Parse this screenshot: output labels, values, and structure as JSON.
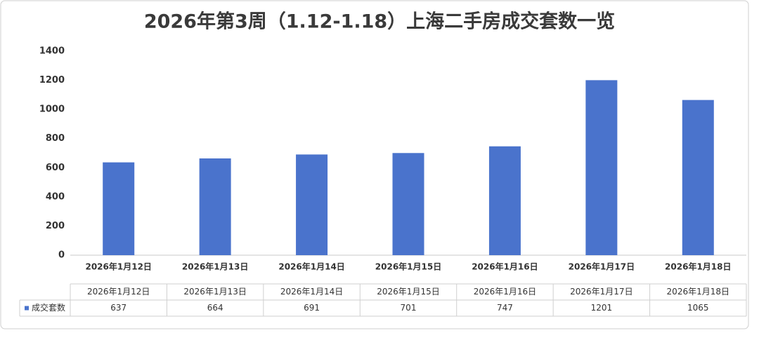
{
  "chart_data": {
    "type": "bar",
    "title": "2026年第3周（1.12-1.18）上海二手房成交套数一览",
    "categories": [
      "2026年1月12日",
      "2026年1月13日",
      "2026年1月14日",
      "2026年1月15日",
      "2026年1月16日",
      "2026年1月17日",
      "2026年1月18日"
    ],
    "series": [
      {
        "name": "成交套数",
        "color": "#4a73cc",
        "values": [
          637,
          664,
          691,
          701,
          747,
          1201,
          1065
        ]
      }
    ],
    "ylim": [
      0,
      1400
    ],
    "yticks": [
      0,
      200,
      400,
      600,
      800,
      1000,
      1200,
      1400
    ],
    "grid": false
  }
}
